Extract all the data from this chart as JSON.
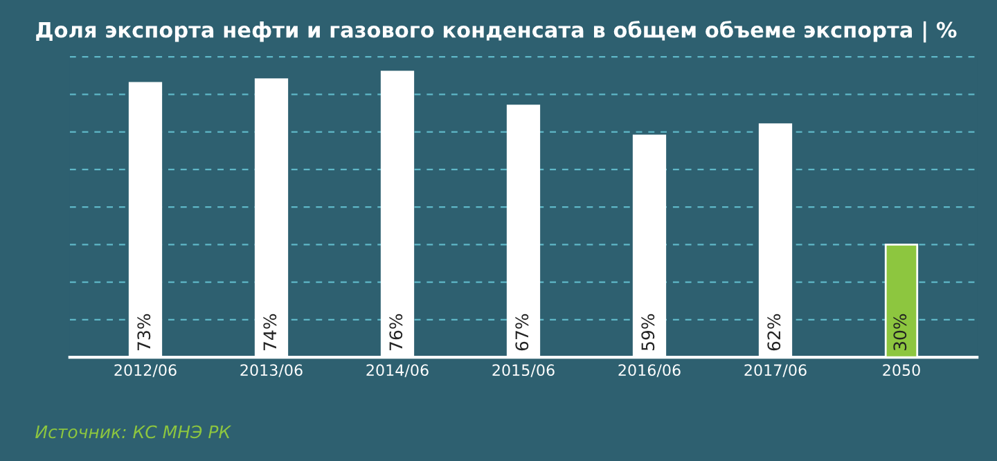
{
  "chart_data": {
    "type": "bar",
    "title": "Доля экспорта нефти и газового конденсата в общем объеме экспорта | %",
    "categories": [
      "2012/06",
      "2013/06",
      "2014/06",
      "2015/06",
      "2016/06",
      "2017/06",
      "2050"
    ],
    "values": [
      73,
      74,
      76,
      67,
      59,
      62,
      30
    ],
    "colors": [
      "#ffffff",
      "#ffffff",
      "#ffffff",
      "#ffffff",
      "#ffffff",
      "#ffffff",
      "#8dc63f"
    ],
    "value_labels": [
      "73%",
      "74%",
      "76%",
      "67%",
      "59%",
      "62%",
      "30%"
    ],
    "ylim": [
      0,
      81
    ],
    "yticks": [
      {
        "value": 10,
        "label": null
      },
      {
        "value": 20,
        "label": null
      },
      {
        "value": 30,
        "label": null
      },
      {
        "value": 40,
        "label": null
      },
      {
        "value": 50,
        "label": null
      },
      {
        "value": 60,
        "label": null
      },
      {
        "value": 70,
        "label": null
      },
      {
        "value": 80,
        "label": null
      }
    ],
    "grid": "y",
    "tick_labels": "x",
    "annotations": [
      "Источник: КС МНЭ РК"
    ]
  }
}
